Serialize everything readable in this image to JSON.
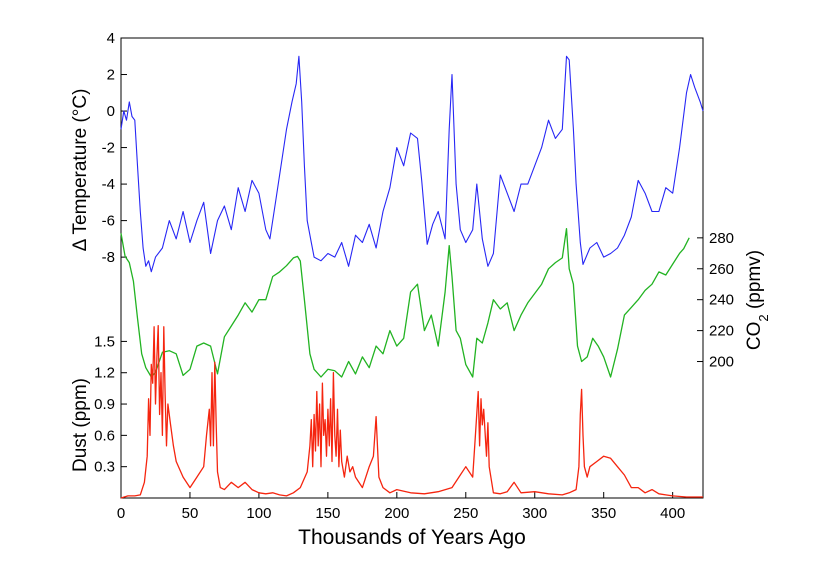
{
  "chart_data": {
    "type": "line",
    "xlabel": "Thousands of Years Ago",
    "xlim": [
      0,
      422
    ],
    "xticks": [
      0,
      50,
      100,
      150,
      200,
      250,
      300,
      350,
      400
    ],
    "panels": [
      {
        "id": "temperature",
        "ylabel": "Δ Temperature (°C)",
        "ylim": [
          -9.8,
          4
        ],
        "yticks": [
          -8,
          -6,
          -4,
          -2,
          0,
          2,
          4
        ],
        "axis_side": "left",
        "color": "#2727f5",
        "series": [
          {
            "x": [
              0,
              2,
              4,
              6,
              8,
              10,
              12,
              14,
              16,
              18,
              20,
              22,
              25,
              30,
              35,
              40,
              45,
              50,
              55,
              60,
              65,
              70,
              75,
              80,
              85,
              90,
              95,
              100,
              105,
              108,
              112,
              116,
              120,
              124,
              127,
              129,
              131,
              133,
              135,
              138,
              140,
              145,
              150,
              155,
              160,
              165,
              170,
              175,
              180,
              185,
              190,
              195,
              200,
              205,
              210,
              215,
              218,
              222,
              226,
              230,
              235,
              238,
              240,
              243,
              246,
              250,
              255,
              258,
              262,
              266,
              270,
              275,
              280,
              285,
              290,
              295,
              300,
              305,
              310,
              315,
              320,
              323,
              325,
              328,
              330,
              333,
              335,
              340,
              345,
              350,
              355,
              360,
              365,
              370,
              375,
              380,
              385,
              390,
              395,
              400,
              405,
              410,
              413,
              416,
              420,
              422
            ],
            "y": [
              -1,
              0,
              -0.5,
              0.5,
              -0.3,
              -0.5,
              -3,
              -5.5,
              -7.5,
              -8.5,
              -8.2,
              -8.8,
              -8,
              -7.5,
              -6,
              -7,
              -5.5,
              -7.2,
              -6,
              -5,
              -7.8,
              -6,
              -5.2,
              -6.5,
              -4.2,
              -5.5,
              -3.8,
              -4.5,
              -6.5,
              -7,
              -5,
              -3,
              -1,
              0.5,
              1.5,
              3,
              0.5,
              -3,
              -6,
              -7.2,
              -8,
              -8.2,
              -7.8,
              -8,
              -7.2,
              -8.5,
              -6.8,
              -7.2,
              -6.2,
              -7.5,
              -5.5,
              -4.2,
              -2,
              -3,
              -1.2,
              -1.5,
              -3.8,
              -7.3,
              -6.2,
              -5.5,
              -7,
              -1,
              2,
              -4,
              -6.5,
              -7.2,
              -6.5,
              -4,
              -7,
              -8.5,
              -7.8,
              -3.5,
              -4.5,
              -5.5,
              -4,
              -4,
              -3,
              -2,
              -0.5,
              -1.5,
              -1,
              3,
              2.8,
              -1,
              -4,
              -7.2,
              -8.4,
              -7.5,
              -7.2,
              -8,
              -7.8,
              -7.5,
              -6.8,
              -5.8,
              -3.8,
              -4.5,
              -5.5,
              -5.5,
              -4.2,
              -4.5,
              -2,
              1,
              2,
              1.3,
              0.5,
              0
            ]
          }
        ]
      },
      {
        "id": "co2",
        "ylabel": "CO₂ (ppmv)",
        "ylim": [
          179,
          320
        ],
        "yticks": [
          200,
          220,
          240,
          260,
          280
        ],
        "axis_side": "right",
        "color": "#22b322",
        "series": [
          {
            "x": [
              0,
              3,
              6,
              9,
              12,
              15,
              18,
              22,
              25,
              30,
              35,
              40,
              45,
              50,
              55,
              60,
              65,
              70,
              75,
              80,
              85,
              90,
              95,
              100,
              105,
              110,
              115,
              120,
              125,
              128,
              130,
              133,
              137,
              140,
              145,
              150,
              155,
              160,
              165,
              170,
              175,
              180,
              185,
              190,
              195,
              200,
              205,
              210,
              215,
              220,
              225,
              230,
              235,
              238,
              240,
              243,
              246,
              250,
              255,
              258,
              262,
              266,
              270,
              275,
              280,
              285,
              290,
              295,
              300,
              305,
              310,
              315,
              320,
              323,
              325,
              328,
              331,
              334,
              338,
              342,
              346,
              350,
              355,
              360,
              365,
              370,
              375,
              380,
              385,
              390,
              395,
              400,
              405,
              408,
              412
            ],
            "y": [
              283,
              268,
              264,
              252,
              228,
              205,
              196,
              190,
              193,
              206,
              207,
              205,
              191,
              195,
              210,
              212,
              210,
              192,
              216,
              223,
              230,
              238,
              232,
              240,
              240,
              255,
              258,
              262,
              267,
              268,
              265,
              240,
              205,
              195,
              190,
              195,
              194,
              190,
              200,
              192,
              203,
              196,
              210,
              205,
              220,
              210,
              215,
              245,
              250,
              220,
              230,
              210,
              245,
              275,
              255,
              220,
              215,
              198,
              190,
              215,
              212,
              225,
              240,
              234,
              238,
              220,
              230,
              238,
              244,
              250,
              260,
              264,
              267,
              286,
              260,
              250,
              210,
              200,
              203,
              215,
              210,
              203,
              190,
              208,
              230,
              235,
              240,
              246,
              250,
              258,
              256,
              263,
              270,
              273,
              280
            ]
          }
        ]
      },
      {
        "id": "dust",
        "ylabel": "Dust (ppm)",
        "ylim": [
          0,
          1.82
        ],
        "yticks": [
          0.3,
          0.6,
          0.9,
          1.2,
          1.5
        ],
        "axis_side": "left",
        "color": "#f5250f",
        "series": [
          {
            "x": [
              0,
              5,
              10,
              14,
              17,
              19,
              20,
              21,
              22,
              23,
              24,
              25,
              26,
              27,
              28,
              29,
              30,
              31,
              32,
              33,
              34,
              36,
              38,
              40,
              45,
              50,
              55,
              60,
              62,
              64,
              65,
              66,
              67,
              68,
              69,
              70,
              72,
              75,
              80,
              85,
              90,
              95,
              100,
              105,
              110,
              115,
              120,
              125,
              130,
              135,
              137,
              138,
              139,
              140,
              141,
              142,
              143,
              144,
              145,
              146,
              147,
              148,
              149,
              150,
              151,
              152,
              153,
              154,
              155,
              156,
              157,
              158,
              159,
              160,
              162,
              164,
              166,
              168,
              170,
              175,
              180,
              183,
              185,
              187,
              190,
              195,
              200,
              210,
              220,
              230,
              240,
              245,
              250,
              255,
              257,
              259,
              260,
              261,
              262,
              263,
              265,
              266,
              267,
              270,
              275,
              280,
              285,
              290,
              300,
              310,
              320,
              325,
              330,
              332,
              333,
              334,
              335,
              336,
              338,
              340,
              345,
              350,
              355,
              360,
              365,
              370,
              375,
              380,
              385,
              390,
              395,
              400,
              410,
              422
            ],
            "y": [
              0,
              0.02,
              0.02,
              0.03,
              0.15,
              0.4,
              0.95,
              0.6,
              1.28,
              1.1,
              1.64,
              0.9,
              1.35,
              1.65,
              0.8,
              1.2,
              0.6,
              1.64,
              1.0,
              0.5,
              0.9,
              0.7,
              0.5,
              0.35,
              0.2,
              0.1,
              0.2,
              0.3,
              0.6,
              0.85,
              0.5,
              1.2,
              0.5,
              1.3,
              0.7,
              0.25,
              0.1,
              0.08,
              0.15,
              0.1,
              0.15,
              0.08,
              0.05,
              0.04,
              0.05,
              0.03,
              0.02,
              0.05,
              0.1,
              0.25,
              0.5,
              0.75,
              0.3,
              0.8,
              0.45,
              1.02,
              0.5,
              0.9,
              0.3,
              1.1,
              0.6,
              0.75,
              0.4,
              0.85,
              0.5,
              0.95,
              0.35,
              1.2,
              0.6,
              0.4,
              0.85,
              0.3,
              0.65,
              0.35,
              0.2,
              0.4,
              0.25,
              0.3,
              0.2,
              0.1,
              0.3,
              0.4,
              0.78,
              0.2,
              0.1,
              0.05,
              0.08,
              0.05,
              0.04,
              0.06,
              0.1,
              0.2,
              0.3,
              0.2,
              0.6,
              1.02,
              0.5,
              0.95,
              0.7,
              0.85,
              0.4,
              0.72,
              0.3,
              0.05,
              0.04,
              0.06,
              0.15,
              0.05,
              0.06,
              0.04,
              0.03,
              0.05,
              0.08,
              0.3,
              0.8,
              1.04,
              0.6,
              0.3,
              0.2,
              0.3,
              0.35,
              0.4,
              0.38,
              0.3,
              0.22,
              0.1,
              0.1,
              0.05,
              0.08,
              0.04,
              0.03,
              0.02,
              0.01,
              0.01
            ]
          }
        ]
      }
    ]
  }
}
